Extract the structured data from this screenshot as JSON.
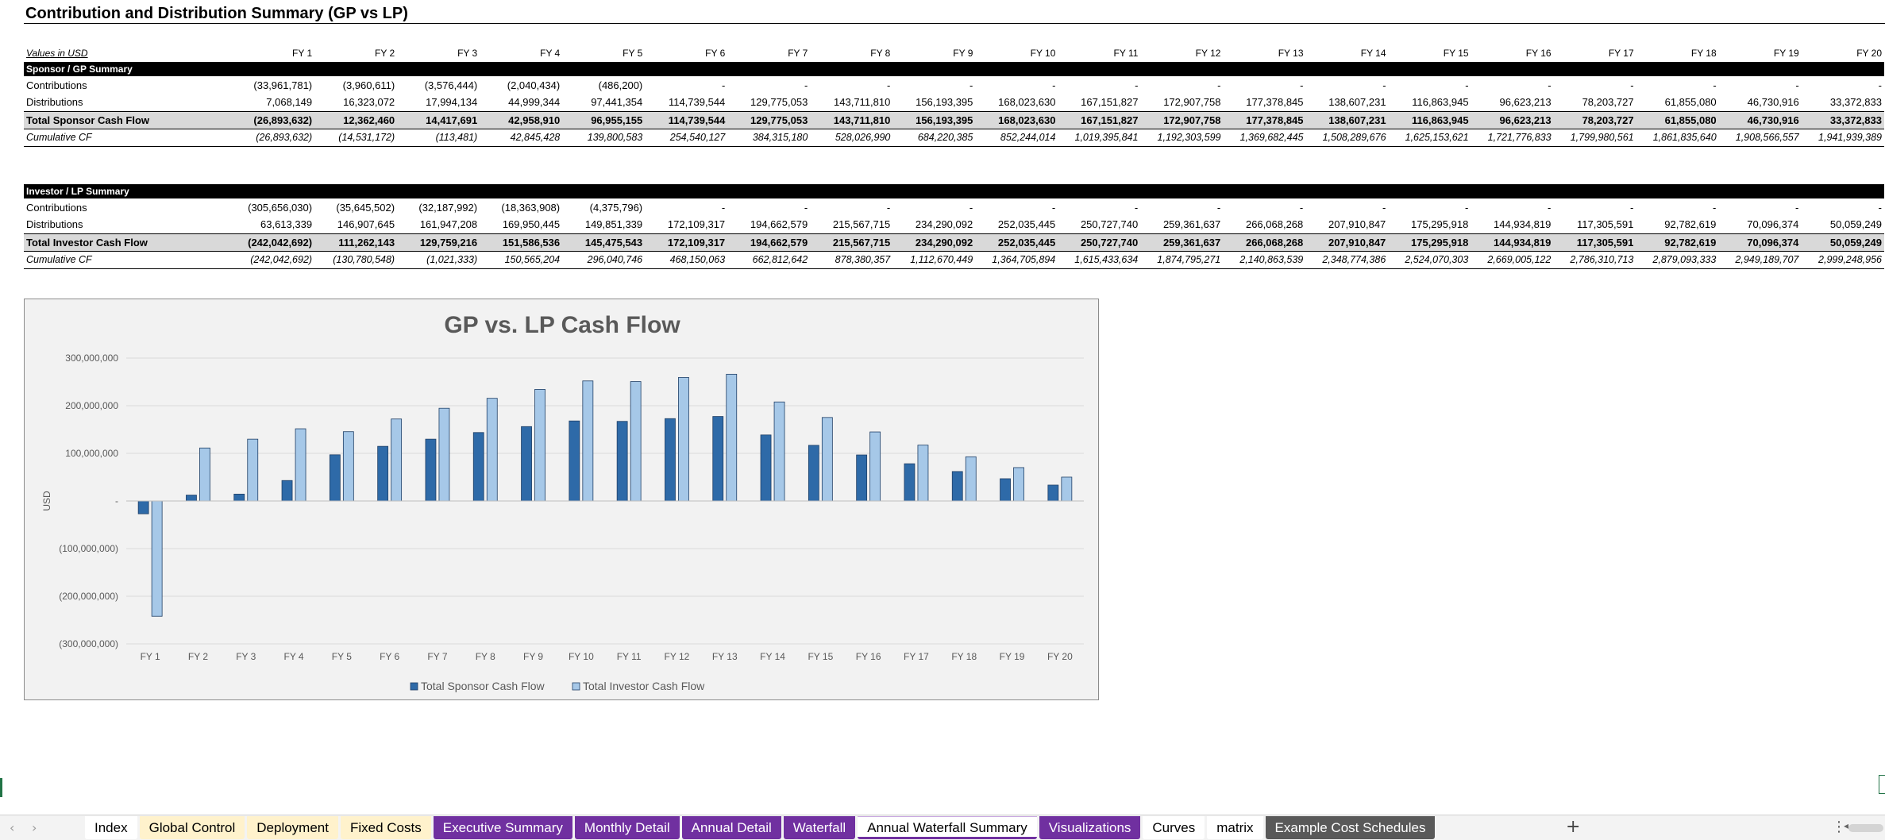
{
  "title": "Contribution and Distribution Summary (GP vs LP)",
  "units_label": "Values in USD",
  "years": [
    "FY 1",
    "FY 2",
    "FY 3",
    "FY 4",
    "FY 5",
    "FY 6",
    "FY 7",
    "FY 8",
    "FY 9",
    "FY 10",
    "FY 11",
    "FY 12",
    "FY 13",
    "FY 14",
    "FY 15",
    "FY 16",
    "FY 17",
    "FY 18",
    "FY 19",
    "FY 20"
  ],
  "sponsor": {
    "header": "Sponsor / GP Summary",
    "rows": [
      {
        "label": "Contributions",
        "values": [
          "(33,961,781)",
          "(3,960,611)",
          "(3,576,444)",
          "(2,040,434)",
          "(486,200)",
          "-",
          "-",
          "-",
          "-",
          "-",
          "-",
          "-",
          "-",
          "-",
          "-",
          "-",
          "-",
          "-",
          "-",
          "-"
        ]
      },
      {
        "label": "Distributions",
        "values": [
          "7,068,149",
          "16,323,072",
          "17,994,134",
          "44,999,344",
          "97,441,354",
          "114,739,544",
          "129,775,053",
          "143,711,810",
          "156,193,395",
          "168,023,630",
          "167,151,827",
          "172,907,758",
          "177,378,845",
          "138,607,231",
          "116,863,945",
          "96,623,213",
          "78,203,727",
          "61,855,080",
          "46,730,916",
          "33,372,833"
        ]
      },
      {
        "label": "Total Sponsor Cash Flow",
        "values": [
          "(26,893,632)",
          "12,362,460",
          "14,417,691",
          "42,958,910",
          "96,955,155",
          "114,739,544",
          "129,775,053",
          "143,711,810",
          "156,193,395",
          "168,023,630",
          "167,151,827",
          "172,907,758",
          "177,378,845",
          "138,607,231",
          "116,863,945",
          "96,623,213",
          "78,203,727",
          "61,855,080",
          "46,730,916",
          "33,372,833"
        ]
      },
      {
        "label": "Cumulative CF",
        "values": [
          "(26,893,632)",
          "(14,531,172)",
          "(113,481)",
          "42,845,428",
          "139,800,583",
          "254,540,127",
          "384,315,180",
          "528,026,990",
          "684,220,385",
          "852,244,014",
          "1,019,395,841",
          "1,192,303,599",
          "1,369,682,445",
          "1,508,289,676",
          "1,625,153,621",
          "1,721,776,833",
          "1,799,980,561",
          "1,861,835,640",
          "1,908,566,557",
          "1,941,939,389"
        ]
      }
    ]
  },
  "investor": {
    "header": "Investor / LP Summary",
    "rows": [
      {
        "label": "Contributions",
        "values": [
          "(305,656,030)",
          "(35,645,502)",
          "(32,187,992)",
          "(18,363,908)",
          "(4,375,796)",
          "-",
          "-",
          "-",
          "-",
          "-",
          "-",
          "-",
          "-",
          "-",
          "-",
          "-",
          "-",
          "-",
          "-",
          "-"
        ]
      },
      {
        "label": "Distributions",
        "values": [
          "63,613,339",
          "146,907,645",
          "161,947,208",
          "169,950,445",
          "149,851,339",
          "172,109,317",
          "194,662,579",
          "215,567,715",
          "234,290,092",
          "252,035,445",
          "250,727,740",
          "259,361,637",
          "266,068,268",
          "207,910,847",
          "175,295,918",
          "144,934,819",
          "117,305,591",
          "92,782,619",
          "70,096,374",
          "50,059,249"
        ]
      },
      {
        "label": "Total Investor Cash Flow",
        "values": [
          "(242,042,692)",
          "111,262,143",
          "129,759,216",
          "151,586,536",
          "145,475,543",
          "172,109,317",
          "194,662,579",
          "215,567,715",
          "234,290,092",
          "252,035,445",
          "250,727,740",
          "259,361,637",
          "266,068,268",
          "207,910,847",
          "175,295,918",
          "144,934,819",
          "117,305,591",
          "92,782,619",
          "70,096,374",
          "50,059,249"
        ]
      },
      {
        "label": "Cumulative CF",
        "values": [
          "(242,042,692)",
          "(130,780,548)",
          "(1,021,333)",
          "150,565,204",
          "296,040,746",
          "468,150,063",
          "662,812,642",
          "878,380,357",
          "1,112,670,449",
          "1,364,705,894",
          "1,615,433,634",
          "1,874,795,271",
          "2,140,863,539",
          "2,348,774,386",
          "2,524,070,303",
          "2,669,005,122",
          "2,786,310,713",
          "2,879,093,333",
          "2,949,189,707",
          "2,999,248,956"
        ]
      }
    ]
  },
  "chart_data": {
    "type": "bar",
    "title": "GP vs. LP Cash Flow",
    "xlabel": "",
    "ylabel": "USD",
    "categories": [
      "FY 1",
      "FY 2",
      "FY 3",
      "FY 4",
      "FY 5",
      "FY 6",
      "FY 7",
      "FY 8",
      "FY 9",
      "FY 10",
      "FY 11",
      "FY 12",
      "FY 13",
      "FY 14",
      "FY 15",
      "FY 16",
      "FY 17",
      "FY 18",
      "FY 19",
      "FY 20"
    ],
    "series": [
      {
        "name": "Total Sponsor Cash Flow",
        "color": "#2e6aa8",
        "values": [
          -26893632,
          12362460,
          14417691,
          42958910,
          96955155,
          114739544,
          129775053,
          143711810,
          156193395,
          168023630,
          167151827,
          172907758,
          177378845,
          138607231,
          116863945,
          96623213,
          78203727,
          61855080,
          46730916,
          33372833
        ]
      },
      {
        "name": "Total Investor Cash Flow",
        "color": "#a6c8e8",
        "values": [
          -242042692,
          111262143,
          129759216,
          151586536,
          145475543,
          172109317,
          194662579,
          215567715,
          234290092,
          252035445,
          250727740,
          259361637,
          266068268,
          207910847,
          175295918,
          144934819,
          117305591,
          92782619,
          70096374,
          50059249
        ]
      }
    ],
    "ylim": [
      -300000000,
      300000000
    ],
    "yticks": [
      300000000,
      200000000,
      100000000,
      0,
      -100000000,
      -200000000,
      -300000000
    ],
    "ytick_labels": [
      "300,000,000",
      "200,000,000",
      "100,000,000",
      "-",
      "(100,000,000)",
      "(200,000,000)",
      "(300,000,000)"
    ],
    "grid": true,
    "legend": "bottom"
  },
  "tabs": [
    {
      "label": "Index",
      "style": "white"
    },
    {
      "label": "Global Control",
      "style": "yellow"
    },
    {
      "label": "Deployment",
      "style": "yellow"
    },
    {
      "label": "Fixed Costs",
      "style": "yellow"
    },
    {
      "label": "Executive Summary",
      "style": "purple"
    },
    {
      "label": "Monthly Detail",
      "style": "purple"
    },
    {
      "label": "Annual Detail",
      "style": "purple"
    },
    {
      "label": "Waterfall",
      "style": "purple"
    },
    {
      "label": "Annual Waterfall Summary",
      "style": "active"
    },
    {
      "label": "Visualizations",
      "style": "purple"
    },
    {
      "label": "Curves",
      "style": "white"
    },
    {
      "label": "matrix",
      "style": "white"
    },
    {
      "label": "Example Cost Schedules",
      "style": "dark"
    }
  ],
  "icons": {
    "prev": "chevron-left-icon",
    "next": "chevron-right-icon",
    "add": "plus-icon",
    "more": "more-vertical-icon"
  }
}
